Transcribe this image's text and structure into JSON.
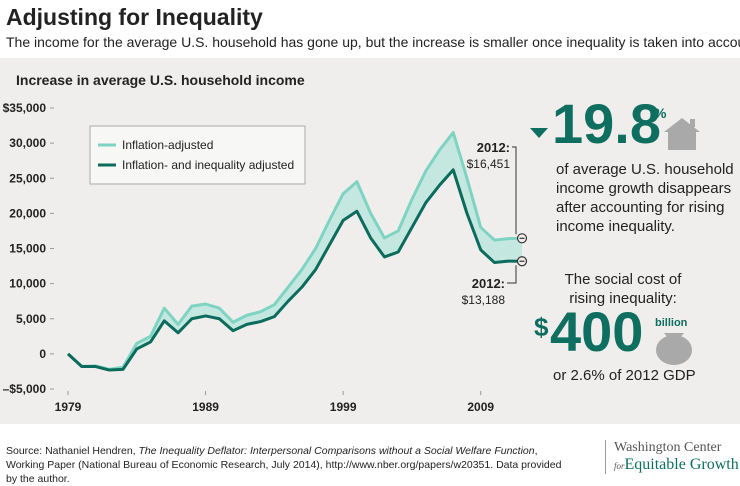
{
  "chart_data": {
    "type": "line",
    "title": "Adjusting for Inequality",
    "subtitle": "The income for the average U.S. household has gone up, but the increase is smaller once inequality is taken into account",
    "chart_title": "Increase in average U.S. household income",
    "x": [
      1979,
      1980,
      1981,
      1982,
      1983,
      1984,
      1985,
      1986,
      1987,
      1988,
      1989,
      1990,
      1991,
      1992,
      1993,
      1994,
      1995,
      1996,
      1997,
      1998,
      1999,
      2000,
      2001,
      2002,
      2003,
      2004,
      2005,
      2006,
      2007,
      2008,
      2009,
      2010,
      2011,
      2012
    ],
    "series": [
      {
        "name": "Inflation-adjusted",
        "color": "#7fd3c3",
        "values": [
          0,
          -1800,
          -1700,
          -2200,
          -1900,
          1500,
          2500,
          6500,
          4200,
          6800,
          7100,
          6500,
          4500,
          5500,
          6000,
          7000,
          9500,
          12000,
          15000,
          19000,
          22800,
          24500,
          20000,
          16500,
          17500,
          22000,
          26000,
          29000,
          31500,
          25000,
          18000,
          16200,
          16400,
          16451
        ]
      },
      {
        "name": "Inflation- and inequality adjusted",
        "color": "#0b6b5d",
        "values": [
          0,
          -1800,
          -1800,
          -2300,
          -2200,
          700,
          1700,
          4700,
          3000,
          5000,
          5400,
          5000,
          3300,
          4200,
          4600,
          5300,
          7500,
          9500,
          12000,
          15500,
          19000,
          20300,
          16500,
          13800,
          14500,
          18000,
          21500,
          24000,
          26200,
          20000,
          14800,
          13000,
          13200,
          13188
        ]
      }
    ],
    "gap_color": "#c4e8df",
    "xlim": [
      1979,
      2012
    ],
    "xticks": [
      1979,
      1989,
      1999,
      2009
    ],
    "ylim": [
      -5000,
      35000
    ],
    "yticks": [
      {
        "value": -5000,
        "label": "–$5,000"
      },
      0,
      {
        "value": 5000,
        "label": "5,000"
      },
      {
        "value": 10000,
        "label": "10,000"
      },
      {
        "value": 15000,
        "label": "15,000"
      },
      {
        "value": 20000,
        "label": "20,000"
      },
      {
        "value": 25000,
        "label": "25,000"
      },
      {
        "value": 30000,
        "label": "30,000"
      },
      {
        "value": 35000,
        "label": "$35,000"
      }
    ],
    "grid": false,
    "legend": "upper left",
    "annotations": [
      {
        "label": "2012:",
        "text": "$16,451"
      },
      {
        "label": "2012:",
        "text": "$13,188"
      }
    ],
    "side": {
      "big_number": "19.8",
      "big_unit": "%",
      "big_text": "of average U.S. household income growth disappears after accounting for rising income inequality.",
      "cost_text": "The social cost of rising inequality:",
      "cost_currency": "$",
      "cost_number": "400",
      "cost_unit": "billion",
      "cost_note": "or 2.6% of 2012 GDP"
    }
  },
  "footer": {
    "source_prefix": "Source: Nathaniel Hendren, ",
    "source_title": "The Inequality Deflator: Interpersonal Comparisons without a Social Welfare Function",
    "source_suffix": ", Working Paper (National Bureau of Economic Research, July 2014), http://www.nber.org/papers/w20351. Data provided by the author.",
    "logo_line1": "Washington Center",
    "logo_for": "for",
    "logo_line2": "Equitable Growth"
  }
}
